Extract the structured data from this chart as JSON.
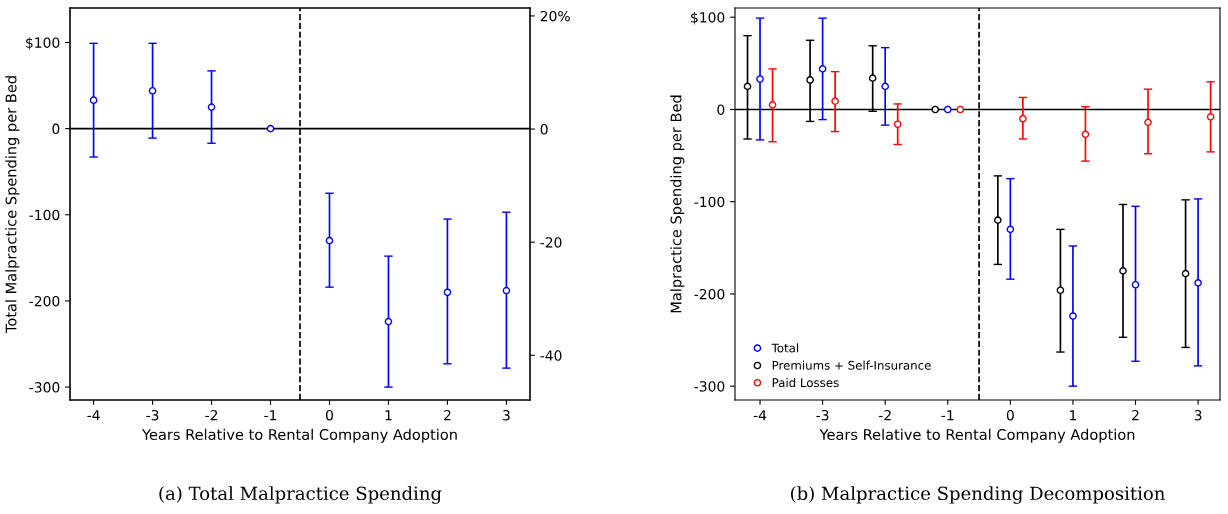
{
  "chart_data": [
    {
      "type": "scatter",
      "xlabel": "Years Relative to Rental Company Adoption",
      "ylabel": "Total Malpractice Spending per Bed",
      "annotations": [
        "(a) Total Malpractice Spending"
      ],
      "x": [
        -4,
        -3,
        -2,
        -1,
        0,
        1,
        2,
        3
      ],
      "xlim": [
        -4.4,
        3.4
      ],
      "xticks": [
        -4,
        -3,
        -2,
        -1,
        0,
        1,
        2,
        3
      ],
      "ylim": [
        -315,
        140
      ],
      "yticks": [
        {
          "value": 100,
          "label": "$100"
        },
        0,
        -100,
        -200,
        -300
      ],
      "y2lim": [
        -47.9,
        21.4
      ],
      "y2ticks": [
        {
          "value": 20,
          "label": "20%"
        },
        0,
        -20,
        -40
      ],
      "marker": "circle",
      "grid": false,
      "legend": false,
      "series": [
        {
          "color": "#0000ff",
          "values": [
            33,
            44,
            25,
            0,
            -130,
            -224,
            -190,
            -188
          ],
          "errors": [
            [
              -33,
              99
            ],
            [
              -11,
              99
            ],
            [
              -17,
              67
            ],
            null,
            [
              -184,
              -75
            ],
            [
              -300,
              -148
            ],
            [
              -273,
              -105
            ],
            [
              -278,
              -97
            ]
          ]
        }
      ],
      "ref_lines": [
        {
          "axis": "y",
          "value": 0,
          "color": "#000000",
          "line_style": "solid"
        },
        {
          "axis": "x",
          "value": -0.5,
          "color": "#000000",
          "line_style": "dashed"
        }
      ]
    },
    {
      "type": "scatter",
      "xlabel": "Years Relative to Rental Company Adoption",
      "ylabel": "Malpractice Spending per Bed",
      "annotations": [
        "(b) Malpractice Spending Decomposition"
      ],
      "xlim": [
        -4.4,
        3.35
      ],
      "xticks": [
        -4,
        -3,
        -2,
        -1,
        0,
        1,
        2,
        3
      ],
      "ylim": [
        -315,
        110
      ],
      "yticks": [
        {
          "value": 100,
          "label": "$100"
        },
        0,
        -100,
        -200,
        -300
      ],
      "marker": "circle",
      "grid": false,
      "legend": "bottom left",
      "series": [
        {
          "name": "Total",
          "color": "#0000ff",
          "x": [
            -4,
            -3,
            -2,
            -1,
            0,
            1,
            2,
            3
          ],
          "values": [
            33,
            44,
            25,
            0,
            -130,
            -224,
            -190,
            -188
          ],
          "errors": [
            [
              -33,
              99
            ],
            [
              -11,
              99
            ],
            [
              -17,
              67
            ],
            null,
            [
              -184,
              -75
            ],
            [
              -300,
              -148
            ],
            [
              -273,
              -105
            ],
            [
              -278,
              -97
            ]
          ]
        },
        {
          "name": "Premiums + Self-Insurance",
          "color": "#000000",
          "x": [
            -4.2,
            -3.2,
            -2.2,
            -1.2,
            -0.2,
            0.8,
            1.8,
            2.8
          ],
          "values": [
            25,
            32,
            34,
            0,
            -120,
            -196,
            -175,
            -178
          ],
          "errors": [
            [
              -32,
              80
            ],
            [
              -13,
              75
            ],
            [
              -2,
              69
            ],
            null,
            [
              -168,
              -72
            ],
            [
              -263,
              -130
            ],
            [
              -247,
              -103
            ],
            [
              -258,
              -98
            ]
          ]
        },
        {
          "name": "Paid Losses",
          "color": "#ff0000",
          "x": [
            -3.8,
            -2.8,
            -1.8,
            -0.8,
            0.2,
            1.2,
            2.2,
            3.2
          ],
          "values": [
            5,
            9,
            -16,
            0,
            -10,
            -27,
            -14,
            -8
          ],
          "errors": [
            [
              -35,
              44
            ],
            [
              -24,
              41
            ],
            [
              -38,
              6
            ],
            null,
            [
              -32,
              13
            ],
            [
              -56,
              3
            ],
            [
              -48,
              22
            ],
            [
              -46,
              30
            ]
          ]
        }
      ],
      "ref_lines": [
        {
          "axis": "y",
          "value": 0,
          "color": "#000000",
          "line_style": "solid"
        },
        {
          "axis": "x",
          "value": -0.5,
          "color": "#000000",
          "line_style": "dashed"
        }
      ]
    }
  ]
}
